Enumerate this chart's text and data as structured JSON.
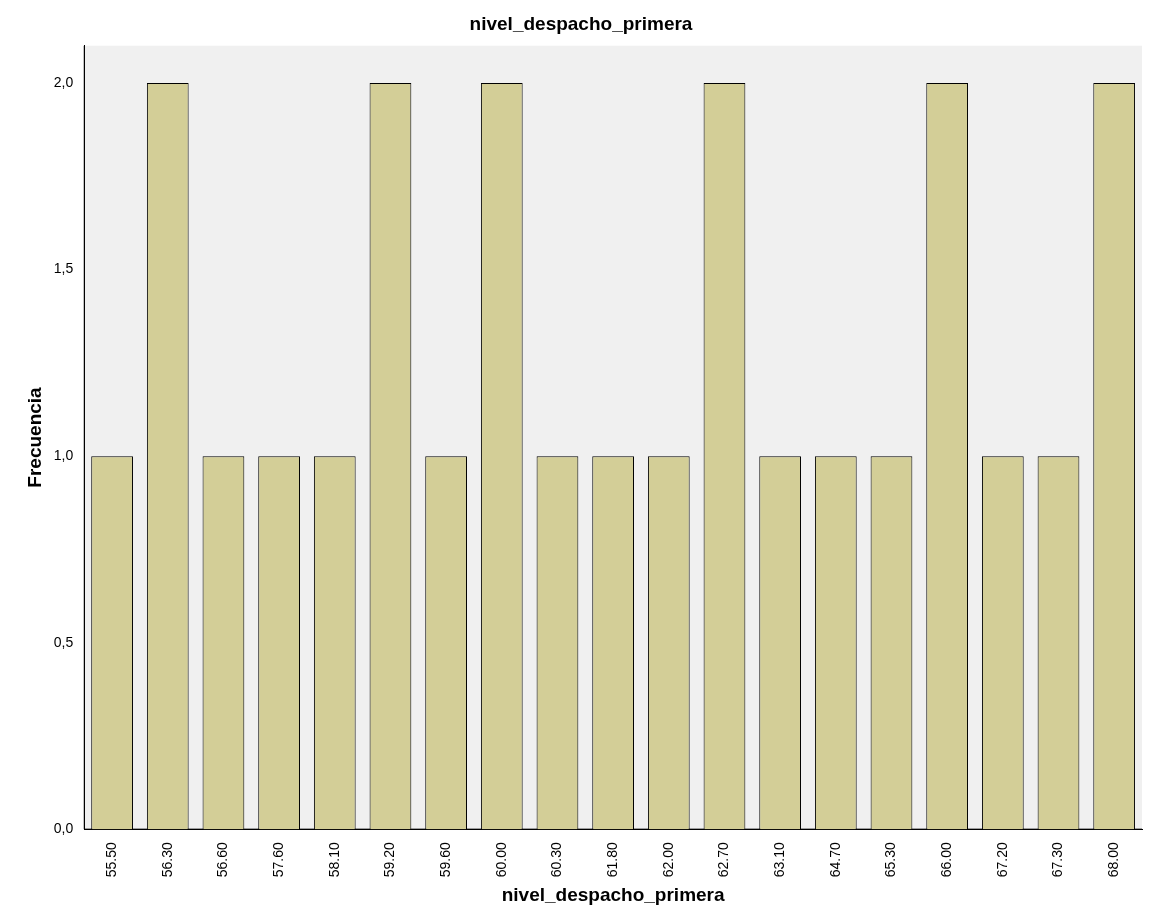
{
  "chart_data": {
    "type": "bar",
    "title": "nivel_despacho_primera",
    "xlabel": "nivel_despacho_primera",
    "ylabel": "Frecuencia",
    "categories": [
      "55.50",
      "56.30",
      "56.60",
      "57.60",
      "58.10",
      "59.20",
      "59.60",
      "60.00",
      "60.30",
      "61.80",
      "62.00",
      "62.70",
      "63.10",
      "64.70",
      "65.30",
      "66.00",
      "67.20",
      "67.30",
      "68.00"
    ],
    "values": [
      1,
      2,
      1,
      1,
      1,
      2,
      1,
      2,
      1,
      1,
      1,
      2,
      1,
      1,
      1,
      2,
      1,
      1,
      2
    ],
    "color": "#d3ce97",
    "ylim": [
      0,
      2.1
    ],
    "yticks": [
      {
        "value": 0,
        "label": "0,0"
      },
      {
        "value": 0.5,
        "label": "0,5"
      },
      {
        "value": 1,
        "label": "1,0"
      },
      {
        "value": 1.5,
        "label": "1,5"
      },
      {
        "value": 2,
        "label": "2,0"
      }
    ],
    "grid": false,
    "legend": false
  }
}
